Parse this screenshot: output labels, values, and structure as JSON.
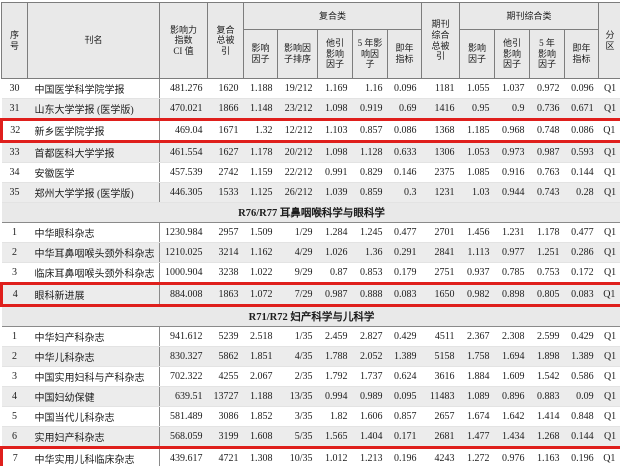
{
  "colors": {
    "highlight_border": "#df1f1c",
    "stripe": "#ececec",
    "header_bg": "#e9e9e9",
    "text": "#1c1c1c"
  },
  "table": {
    "header": {
      "serial": "序\n号",
      "journal": "刊名",
      "ci": "影响力\n指数\nCI 值",
      "composite_cites": "复合\n总被\n引",
      "composite_group": "复合类",
      "composite_if": "影响\n因子",
      "composite_if_rank": "影响因\n子排序",
      "composite_other_if": "他引\n影响\n因子",
      "composite_5yr_if": "5 年影\n响因\n子",
      "composite_immediacy": "即年\n指标",
      "journal_cites": "期刊\n综合\n总被\n引",
      "journal_group": "期刊综合类",
      "journal_if": "影响\n因子",
      "journal_other_if": "他引\n影响\n因子",
      "journal_5yr_if": "5 年\n影响\n因子",
      "journal_immediacy": "即年\n指标",
      "quartile": "分\n区"
    },
    "cell_roles": [
      "serial",
      "journal-name",
      "ci-value",
      "composite-total-cites",
      "composite-if",
      "composite-if-rank",
      "composite-other-if",
      "composite-5yr-if",
      "composite-immediacy",
      "journal-total-cites",
      "journal-if",
      "journal-other-if",
      "journal-5yr-if",
      "journal-immediacy",
      "quartile"
    ],
    "rows": [
      {
        "type": "journal",
        "cells": [
          "30",
          "中国医学科学院学报",
          "481.276",
          "1620",
          "1.188",
          "19/212",
          "1.169",
          "1.16",
          "0.096",
          "1181",
          "1.055",
          "1.037",
          "0.972",
          "0.096",
          "Q1"
        ]
      },
      {
        "type": "journal",
        "cells": [
          "31",
          "山东大学学报 (医学版)",
          "470.021",
          "1866",
          "1.148",
          "23/212",
          "1.098",
          "0.919",
          "0.69",
          "1416",
          "0.95",
          "0.9",
          "0.736",
          "0.671",
          "Q1"
        ]
      },
      {
        "type": "journal",
        "highlight": true,
        "cells": [
          "32",
          "新乡医学院学报",
          "469.04",
          "1671",
          "1.32",
          "12/212",
          "1.103",
          "0.857",
          "0.086",
          "1368",
          "1.185",
          "0.968",
          "0.748",
          "0.086",
          "Q1"
        ]
      },
      {
        "type": "journal",
        "cells": [
          "33",
          "首都医科大学学报",
          "461.554",
          "1627",
          "1.178",
          "20/212",
          "1.098",
          "1.128",
          "0.633",
          "1306",
          "1.053",
          "0.973",
          "0.987",
          "0.593",
          "Q1"
        ]
      },
      {
        "type": "journal",
        "cells": [
          "34",
          "安徽医学",
          "457.539",
          "2742",
          "1.159",
          "22/212",
          "0.991",
          "0.829",
          "0.146",
          "2375",
          "1.085",
          "0.916",
          "0.763",
          "0.144",
          "Q1"
        ]
      },
      {
        "type": "journal",
        "cells": [
          "35",
          "郑州大学学报 (医学版)",
          "446.305",
          "1533",
          "1.125",
          "26/212",
          "1.039",
          "0.859",
          "0.3",
          "1231",
          "1.03",
          "0.944",
          "0.743",
          "0.28",
          "Q1"
        ]
      },
      {
        "type": "section",
        "label": "R76/R77  耳鼻咽喉科学与眼科学"
      },
      {
        "type": "journal",
        "cells": [
          "1",
          "中华眼科杂志",
          "1230.984",
          "2957",
          "1.509",
          "1/29",
          "1.284",
          "1.245",
          "0.477",
          "2701",
          "1.456",
          "1.231",
          "1.178",
          "0.477",
          "Q1"
        ]
      },
      {
        "type": "journal",
        "cells": [
          "2",
          "中华耳鼻咽喉头颈外科杂志",
          "1210.025",
          "3214",
          "1.162",
          "4/29",
          "1.026",
          "1.36",
          "0.291",
          "2841",
          "1.113",
          "0.977",
          "1.251",
          "0.286",
          "Q1"
        ]
      },
      {
        "type": "journal",
        "cells": [
          "3",
          "临床耳鼻咽喉头颈外科杂志",
          "1000.904",
          "3238",
          "1.022",
          "9/29",
          "0.87",
          "0.853",
          "0.179",
          "2751",
          "0.937",
          "0.785",
          "0.753",
          "0.172",
          "Q1"
        ]
      },
      {
        "type": "journal",
        "highlight": true,
        "cells": [
          "4",
          "眼科新进展",
          "884.008",
          "1863",
          "1.072",
          "7/29",
          "0.987",
          "0.888",
          "0.083",
          "1650",
          "0.982",
          "0.898",
          "0.805",
          "0.083",
          "Q1"
        ]
      },
      {
        "type": "section",
        "label": "R71/R72  妇产科学与儿科学"
      },
      {
        "type": "journal",
        "cells": [
          "1",
          "中华妇产科杂志",
          "941.612",
          "5239",
          "2.518",
          "1/35",
          "2.459",
          "2.827",
          "0.429",
          "4511",
          "2.367",
          "2.308",
          "2.599",
          "0.429",
          "Q1"
        ]
      },
      {
        "type": "journal",
        "cells": [
          "2",
          "中华儿科杂志",
          "830.327",
          "5862",
          "1.851",
          "4/35",
          "1.788",
          "2.052",
          "1.389",
          "5158",
          "1.758",
          "1.694",
          "1.898",
          "1.389",
          "Q1"
        ]
      },
      {
        "type": "journal",
        "cells": [
          "3",
          "中国实用妇科与产科杂志",
          "702.322",
          "4255",
          "2.067",
          "2/35",
          "1.792",
          "1.737",
          "0.624",
          "3616",
          "1.884",
          "1.609",
          "1.542",
          "0.586",
          "Q1"
        ]
      },
      {
        "type": "journal",
        "cells": [
          "4",
          "中国妇幼保健",
          "639.51",
          "13727",
          "1.188",
          "13/35",
          "0.994",
          "0.989",
          "0.095",
          "11483",
          "1.089",
          "0.896",
          "0.883",
          "0.09",
          "Q1"
        ]
      },
      {
        "type": "journal",
        "cells": [
          "5",
          "中国当代儿科杂志",
          "581.489",
          "3086",
          "1.852",
          "3/35",
          "1.82",
          "1.606",
          "0.857",
          "2657",
          "1.674",
          "1.642",
          "1.414",
          "0.848",
          "Q1"
        ]
      },
      {
        "type": "journal",
        "cells": [
          "6",
          "实用妇产科杂志",
          "568.059",
          "3199",
          "1.608",
          "5/35",
          "1.565",
          "1.404",
          "0.171",
          "2681",
          "1.477",
          "1.434",
          "1.268",
          "0.144",
          "Q1"
        ]
      },
      {
        "type": "journal",
        "highlight": true,
        "cells": [
          "7",
          "中华实用儿科临床杂志",
          "439.617",
          "4721",
          "1.308",
          "10/35",
          "1.012",
          "1.213",
          "0.196",
          "4243",
          "1.272",
          "0.976",
          "1.163",
          "0.196",
          "Q1"
        ]
      }
    ]
  }
}
